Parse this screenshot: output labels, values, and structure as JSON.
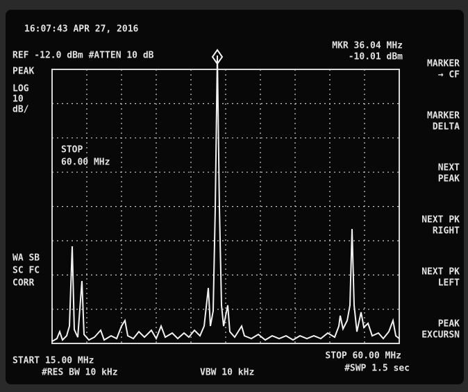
{
  "header": {
    "timestamp": "16:07:43 APR 27, 2016",
    "reference": "REF -12.0 dBm #ATTEN 10 dB",
    "marker_freq": "MKR 36.04 MHz",
    "marker_level": "-10.01 dBm"
  },
  "left_labels": {
    "detector": "PEAK",
    "scale": "LOG",
    "scale_value": "10",
    "scale_unit": "dB/",
    "status": [
      "WA SB",
      "SC FC",
      "CORR"
    ]
  },
  "annotation": {
    "title": "STOP",
    "value": "60.00 MHz"
  },
  "softkeys": [
    [
      "MARKER",
      "→ CF"
    ],
    [
      "MARKER",
      "DELTA"
    ],
    [
      "NEXT",
      "PEAK"
    ],
    [
      "NEXT PK",
      "RIGHT"
    ],
    [
      "NEXT PK",
      "LEFT"
    ],
    [
      "PEAK",
      "EXCURSN"
    ]
  ],
  "footer": {
    "start": "START 15.00 MHz",
    "rbw": "#RES BW 10 kHz",
    "vbw": "VBW 10 kHz",
    "stop": "STOP 60.00 MHz",
    "sweep": "#SWP 1.5 sec"
  }
}
